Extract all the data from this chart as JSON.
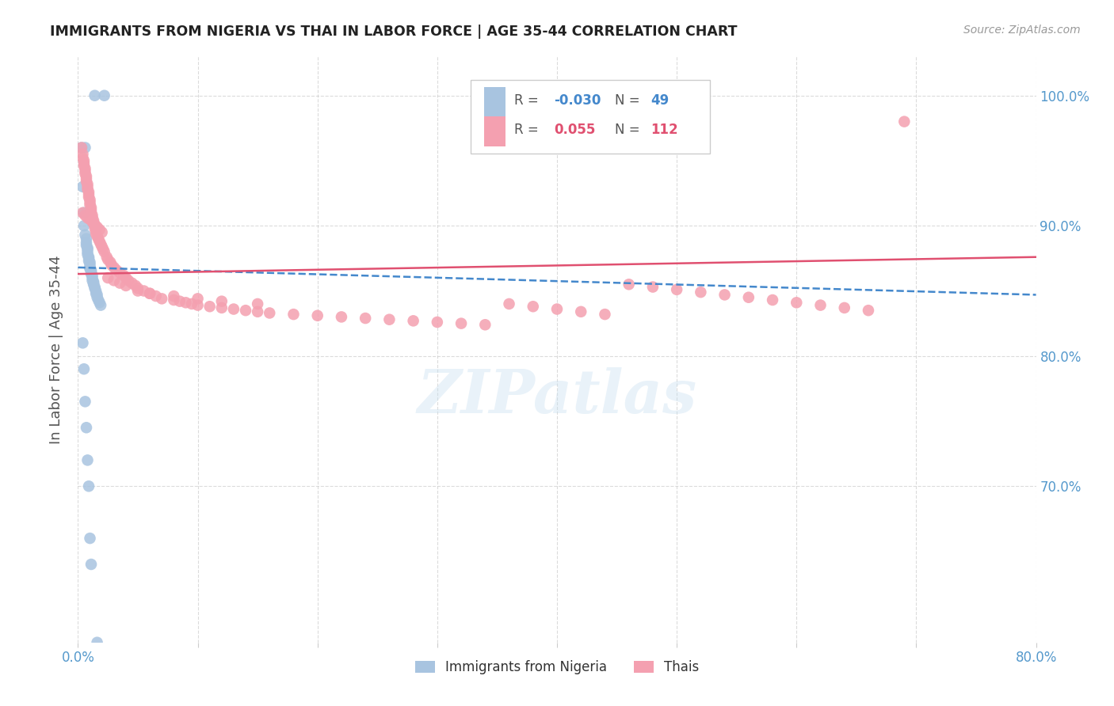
{
  "title": "IMMIGRANTS FROM NIGERIA VS THAI IN LABOR FORCE | AGE 35-44 CORRELATION CHART",
  "source": "Source: ZipAtlas.com",
  "ylabel": "In Labor Force | Age 35-44",
  "xlim": [
    0.0,
    0.8
  ],
  "ylim": [
    0.58,
    1.03
  ],
  "yticks": [
    0.7,
    0.8,
    0.9,
    1.0
  ],
  "ytick_labels": [
    "70.0%",
    "80.0%",
    "90.0%",
    "100.0%"
  ],
  "xticks": [
    0.0,
    0.1,
    0.2,
    0.3,
    0.4,
    0.5,
    0.6,
    0.7,
    0.8
  ],
  "xtick_labels": [
    "0.0%",
    "",
    "",
    "",
    "",
    "",
    "",
    "",
    "80.0%"
  ],
  "nigeria_R": -0.03,
  "nigeria_N": 49,
  "thai_R": 0.055,
  "thai_N": 112,
  "nigeria_color": "#a8c4e0",
  "thai_color": "#f4a0b0",
  "nigeria_line_color": "#4488cc",
  "thai_line_color": "#e05070",
  "axis_color": "#5599cc",
  "grid_color": "#cccccc",
  "background_color": "#ffffff",
  "watermark": "ZIPatlas",
  "nigeria_x": [
    0.014,
    0.022,
    0.003,
    0.006,
    0.004,
    0.005,
    0.005,
    0.006,
    0.007,
    0.007,
    0.007,
    0.008,
    0.008,
    0.008,
    0.008,
    0.009,
    0.009,
    0.009,
    0.01,
    0.01,
    0.01,
    0.01,
    0.011,
    0.011,
    0.011,
    0.012,
    0.012,
    0.012,
    0.013,
    0.013,
    0.013,
    0.014,
    0.014,
    0.015,
    0.015,
    0.016,
    0.016,
    0.017,
    0.018,
    0.019,
    0.004,
    0.005,
    0.006,
    0.007,
    0.008,
    0.009,
    0.01,
    0.011,
    0.016
  ],
  "nigeria_y": [
    1.0,
    1.0,
    0.96,
    0.96,
    0.93,
    0.91,
    0.9,
    0.893,
    0.89,
    0.887,
    0.885,
    0.883,
    0.882,
    0.88,
    0.878,
    0.876,
    0.875,
    0.873,
    0.872,
    0.87,
    0.868,
    0.867,
    0.866,
    0.865,
    0.863,
    0.862,
    0.86,
    0.858,
    0.857,
    0.856,
    0.855,
    0.853,
    0.852,
    0.85,
    0.848,
    0.847,
    0.845,
    0.843,
    0.841,
    0.839,
    0.81,
    0.79,
    0.765,
    0.745,
    0.72,
    0.7,
    0.66,
    0.64,
    0.58
  ],
  "thai_x": [
    0.003,
    0.004,
    0.004,
    0.005,
    0.005,
    0.005,
    0.006,
    0.006,
    0.006,
    0.007,
    0.007,
    0.007,
    0.008,
    0.008,
    0.008,
    0.009,
    0.009,
    0.009,
    0.01,
    0.01,
    0.01,
    0.011,
    0.011,
    0.011,
    0.012,
    0.012,
    0.013,
    0.013,
    0.014,
    0.014,
    0.015,
    0.015,
    0.016,
    0.017,
    0.018,
    0.019,
    0.02,
    0.021,
    0.022,
    0.024,
    0.025,
    0.027,
    0.028,
    0.03,
    0.032,
    0.035,
    0.038,
    0.04,
    0.042,
    0.045,
    0.048,
    0.05,
    0.055,
    0.06,
    0.065,
    0.07,
    0.08,
    0.085,
    0.09,
    0.095,
    0.1,
    0.11,
    0.12,
    0.13,
    0.14,
    0.15,
    0.16,
    0.18,
    0.2,
    0.22,
    0.24,
    0.26,
    0.28,
    0.3,
    0.32,
    0.34,
    0.36,
    0.38,
    0.4,
    0.42,
    0.44,
    0.46,
    0.48,
    0.5,
    0.52,
    0.54,
    0.56,
    0.58,
    0.6,
    0.62,
    0.64,
    0.66,
    0.004,
    0.006,
    0.008,
    0.01,
    0.012,
    0.014,
    0.016,
    0.018,
    0.02,
    0.025,
    0.03,
    0.035,
    0.04,
    0.05,
    0.06,
    0.08,
    0.1,
    0.12,
    0.15,
    0.69
  ],
  "thai_y": [
    0.96,
    0.955,
    0.952,
    0.95,
    0.948,
    0.946,
    0.944,
    0.942,
    0.94,
    0.938,
    0.936,
    0.934,
    0.932,
    0.93,
    0.928,
    0.926,
    0.924,
    0.922,
    0.92,
    0.918,
    0.916,
    0.914,
    0.912,
    0.91,
    0.908,
    0.906,
    0.904,
    0.902,
    0.9,
    0.898,
    0.896,
    0.894,
    0.892,
    0.89,
    0.888,
    0.886,
    0.884,
    0.882,
    0.88,
    0.876,
    0.874,
    0.872,
    0.87,
    0.868,
    0.866,
    0.864,
    0.862,
    0.86,
    0.858,
    0.856,
    0.854,
    0.852,
    0.85,
    0.848,
    0.846,
    0.844,
    0.843,
    0.842,
    0.841,
    0.84,
    0.839,
    0.838,
    0.837,
    0.836,
    0.835,
    0.834,
    0.833,
    0.832,
    0.831,
    0.83,
    0.829,
    0.828,
    0.827,
    0.826,
    0.825,
    0.824,
    0.84,
    0.838,
    0.836,
    0.834,
    0.832,
    0.855,
    0.853,
    0.851,
    0.849,
    0.847,
    0.845,
    0.843,
    0.841,
    0.839,
    0.837,
    0.835,
    0.91,
    0.908,
    0.906,
    0.905,
    0.903,
    0.901,
    0.899,
    0.897,
    0.895,
    0.86,
    0.858,
    0.856,
    0.854,
    0.85,
    0.848,
    0.846,
    0.844,
    0.842,
    0.84,
    0.98
  ],
  "nig_line_x": [
    0.0,
    0.8
  ],
  "nig_line_y": [
    0.868,
    0.847
  ],
  "thai_line_x": [
    0.0,
    0.8
  ],
  "thai_line_y": [
    0.863,
    0.876
  ]
}
